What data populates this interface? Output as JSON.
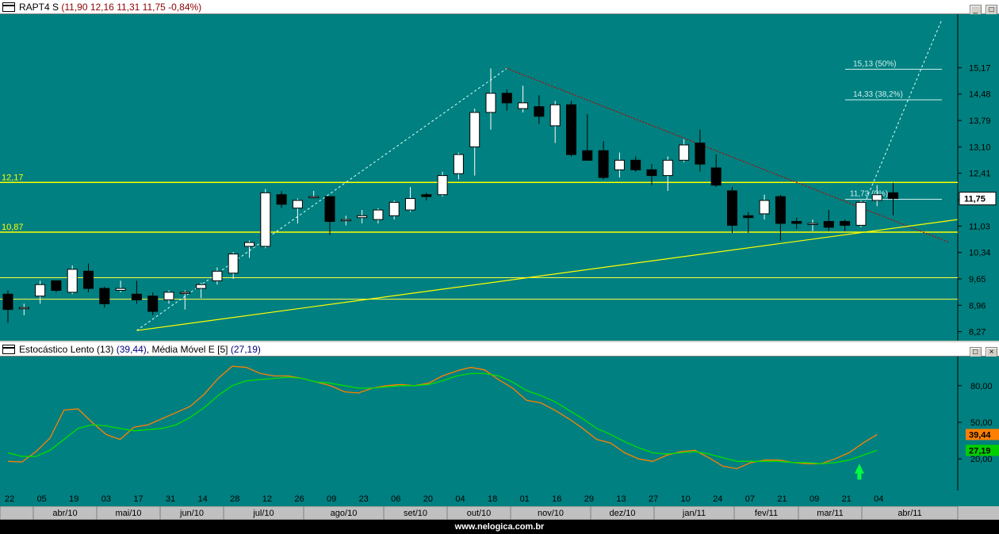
{
  "main_panel": {
    "title_ticker": "RAPT4 S",
    "title_ohlc": "(11,90  12,16  11,31  11,75  -0,84%)",
    "window_buttons": [
      "_",
      "□",
      "×"
    ],
    "last_price_tag": "11,75",
    "hline_labels": {
      "top": "12,17",
      "bottom": "10,87"
    }
  },
  "indicator_panel": {
    "title_name": "Estocástico Lento (13)",
    "title_value1": "(39,44)",
    "title_sep": ",  Média Móvel E [5]",
    "title_value2": "(27,19)",
    "tag1": "39,44",
    "tag2": "27,19",
    "colors": {
      "slow": "#ff8000",
      "ema": "#00e000",
      "tag1": "#ff8000",
      "tag2": "#00d000"
    }
  },
  "footer": {
    "url": "www.nelogica.com.br"
  },
  "chart_data": [
    {
      "type": "candlestick",
      "title": "RAPT4 S",
      "ylim": [
        8.2,
        16.4
      ],
      "y_ticks": [
        "15,17",
        "14,48",
        "13,79",
        "13,10",
        "12,41",
        "11,72",
        "11,03",
        "10,34",
        "9,65",
        "8,96",
        "8,27"
      ],
      "y_tick_values": [
        15.17,
        14.48,
        13.79,
        13.1,
        12.41,
        11.72,
        11.03,
        10.34,
        9.65,
        8.96,
        8.27
      ],
      "x_tick_labels": [
        "22",
        "05",
        "19",
        "03",
        "17",
        "31",
        "14",
        "28",
        "12",
        "26",
        "09",
        "23",
        "06",
        "20",
        "04",
        "18",
        "01",
        "16",
        "29",
        "13",
        "27",
        "10",
        "24",
        "07",
        "21",
        "09",
        "21",
        "04"
      ],
      "month_labels": [
        "abr/10",
        "mai/10",
        "jun/10",
        "jul/10",
        "ago/10",
        "set/10",
        "out/10",
        "nov/10",
        "dez/10",
        "jan/11",
        "fev/11",
        "mar/11",
        "abr/11"
      ],
      "candles": [
        {
          "o": 9.25,
          "h": 9.35,
          "l": 8.5,
          "c": 8.85
        },
        {
          "o": 8.9,
          "h": 9.0,
          "l": 8.7,
          "c": 8.9
        },
        {
          "o": 9.2,
          "h": 9.6,
          "l": 9.0,
          "c": 9.5
        },
        {
          "o": 9.6,
          "h": 9.6,
          "l": 9.3,
          "c": 9.35
        },
        {
          "o": 9.3,
          "h": 10.0,
          "l": 9.25,
          "c": 9.9
        },
        {
          "o": 9.85,
          "h": 10.05,
          "l": 9.3,
          "c": 9.4
        },
        {
          "o": 9.4,
          "h": 9.45,
          "l": 8.9,
          "c": 9.0
        },
        {
          "o": 9.35,
          "h": 9.6,
          "l": 9.3,
          "c": 9.4
        },
        {
          "o": 9.25,
          "h": 9.6,
          "l": 9.0,
          "c": 9.1
        },
        {
          "o": 9.2,
          "h": 9.3,
          "l": 8.7,
          "c": 8.8
        },
        {
          "o": 9.1,
          "h": 9.35,
          "l": 9.0,
          "c": 9.3
        },
        {
          "o": 9.3,
          "h": 9.35,
          "l": 8.85,
          "c": 9.3
        },
        {
          "o": 9.4,
          "h": 9.55,
          "l": 9.15,
          "c": 9.5
        },
        {
          "o": 9.6,
          "h": 9.95,
          "l": 9.5,
          "c": 9.85
        },
        {
          "o": 9.8,
          "h": 10.35,
          "l": 9.65,
          "c": 10.3
        },
        {
          "o": 10.5,
          "h": 10.65,
          "l": 10.2,
          "c": 10.6
        },
        {
          "o": 10.5,
          "h": 12.0,
          "l": 10.45,
          "c": 11.9
        },
        {
          "o": 11.85,
          "h": 11.95,
          "l": 11.5,
          "c": 11.6
        },
        {
          "o": 11.5,
          "h": 11.75,
          "l": 11.1,
          "c": 11.7
        },
        {
          "o": 11.8,
          "h": 11.95,
          "l": 11.8,
          "c": 11.8
        },
        {
          "o": 11.8,
          "h": 11.8,
          "l": 10.8,
          "c": 11.15
        },
        {
          "o": 11.2,
          "h": 11.3,
          "l": 11.05,
          "c": 11.2
        },
        {
          "o": 11.25,
          "h": 11.45,
          "l": 11.1,
          "c": 11.3
        },
        {
          "o": 11.2,
          "h": 11.5,
          "l": 11.1,
          "c": 11.45
        },
        {
          "o": 11.3,
          "h": 11.7,
          "l": 11.2,
          "c": 11.65
        },
        {
          "o": 11.45,
          "h": 12.05,
          "l": 11.4,
          "c": 11.75
        },
        {
          "o": 11.85,
          "h": 11.9,
          "l": 11.7,
          "c": 11.8
        },
        {
          "o": 11.85,
          "h": 12.45,
          "l": 11.8,
          "c": 12.35
        },
        {
          "o": 12.4,
          "h": 12.95,
          "l": 12.25,
          "c": 12.9
        },
        {
          "o": 13.1,
          "h": 14.1,
          "l": 12.35,
          "c": 14.0
        },
        {
          "o": 14.0,
          "h": 15.15,
          "l": 13.55,
          "c": 14.5
        },
        {
          "o": 14.5,
          "h": 14.6,
          "l": 14.05,
          "c": 14.25
        },
        {
          "o": 14.1,
          "h": 14.7,
          "l": 14.0,
          "c": 14.25
        },
        {
          "o": 14.15,
          "h": 14.45,
          "l": 13.7,
          "c": 13.9
        },
        {
          "o": 13.65,
          "h": 14.3,
          "l": 13.2,
          "c": 14.2
        },
        {
          "o": 14.2,
          "h": 14.3,
          "l": 12.85,
          "c": 12.9
        },
        {
          "o": 13.0,
          "h": 13.95,
          "l": 12.8,
          "c": 12.75
        },
        {
          "o": 13.0,
          "h": 13.25,
          "l": 12.25,
          "c": 12.3
        },
        {
          "o": 12.5,
          "h": 12.95,
          "l": 12.3,
          "c": 12.75
        },
        {
          "o": 12.75,
          "h": 12.85,
          "l": 12.45,
          "c": 12.5
        },
        {
          "o": 12.5,
          "h": 12.65,
          "l": 12.1,
          "c": 12.35
        },
        {
          "o": 12.35,
          "h": 12.85,
          "l": 11.95,
          "c": 12.75
        },
        {
          "o": 12.75,
          "h": 13.3,
          "l": 12.7,
          "c": 13.15
        },
        {
          "o": 13.2,
          "h": 13.55,
          "l": 12.45,
          "c": 12.65
        },
        {
          "o": 12.55,
          "h": 12.9,
          "l": 12.05,
          "c": 12.1
        },
        {
          "o": 11.95,
          "h": 12.05,
          "l": 10.85,
          "c": 11.05
        },
        {
          "o": 11.3,
          "h": 11.4,
          "l": 10.85,
          "c": 11.25
        },
        {
          "o": 11.35,
          "h": 11.85,
          "l": 11.2,
          "c": 11.7
        },
        {
          "o": 11.8,
          "h": 11.85,
          "l": 10.65,
          "c": 11.1
        },
        {
          "o": 11.15,
          "h": 11.25,
          "l": 10.95,
          "c": 11.1
        },
        {
          "o": 11.1,
          "h": 11.2,
          "l": 10.9,
          "c": 11.1
        },
        {
          "o": 11.15,
          "h": 11.45,
          "l": 10.9,
          "c": 11.0
        },
        {
          "o": 11.15,
          "h": 11.2,
          "l": 10.9,
          "c": 11.05
        },
        {
          "o": 11.05,
          "h": 11.7,
          "l": 11.0,
          "c": 11.65
        },
        {
          "o": 11.7,
          "h": 12.1,
          "l": 11.55,
          "c": 11.85
        },
        {
          "o": 11.9,
          "h": 12.16,
          "l": 11.31,
          "c": 11.75
        }
      ],
      "horizontal_lines": [
        12.17,
        10.87,
        9.68,
        9.12
      ],
      "fibonacci": [
        {
          "label": "15,13 (50%)",
          "value": 15.13
        },
        {
          "label": "14,33 (38,2%)",
          "value": 14.33
        },
        {
          "label": "11,73 (0%)",
          "value": 11.73
        }
      ],
      "trendlines": [
        {
          "style": "dashed-white",
          "from": [
            8,
            8.3
          ],
          "to": [
            31,
            15.15
          ]
        },
        {
          "style": "dashed-red",
          "from": [
            31,
            15.15
          ],
          "to": [
            58.5,
            10.6
          ]
        },
        {
          "style": "solid-yellow",
          "from": [
            8,
            8.3
          ],
          "to": [
            59,
            11.2
          ]
        },
        {
          "style": "dashed-white",
          "from": [
            53,
            11.4
          ],
          "to": [
            58,
            16.4
          ]
        }
      ]
    },
    {
      "type": "line",
      "title": "Estocástico Lento (13)",
      "ylim": [
        0,
        100
      ],
      "y_ticks": [
        "80,00",
        "50,00",
        "20,00"
      ],
      "y_tick_values": [
        80,
        50,
        20
      ],
      "series": [
        {
          "name": "Estocástico Lento (13)",
          "color": "#ff8000",
          "values": [
            18,
            17.5,
            26,
            37,
            60,
            61,
            50,
            40,
            36,
            46,
            48,
            53,
            58,
            63,
            73,
            86,
            96,
            95,
            90,
            88,
            88,
            86,
            83,
            80,
            75,
            74,
            78,
            80,
            81,
            80,
            82,
            88,
            92,
            95,
            93,
            85,
            78,
            68,
            66,
            60,
            53,
            45,
            36,
            33,
            25,
            20,
            18,
            23,
            26,
            27,
            21,
            14,
            12,
            17,
            19,
            19,
            17,
            16,
            16,
            20,
            25,
            33,
            40
          ]
        },
        {
          "name": "Média Móvel E [5]",
          "color": "#00e000",
          "values": [
            25,
            22,
            22,
            27,
            36,
            45,
            48,
            47,
            45,
            43,
            44,
            45,
            48,
            54,
            62,
            72,
            80,
            84,
            85,
            86,
            87,
            86,
            83,
            82,
            80,
            78,
            78,
            79,
            80,
            80,
            81,
            84,
            88,
            90,
            90,
            88,
            83,
            76,
            72,
            67,
            60,
            53,
            45,
            40,
            34,
            29,
            25,
            24,
            25,
            26,
            24,
            21,
            18,
            18,
            18,
            18,
            17,
            17,
            16,
            17,
            19,
            23,
            27
          ]
        }
      ]
    }
  ]
}
